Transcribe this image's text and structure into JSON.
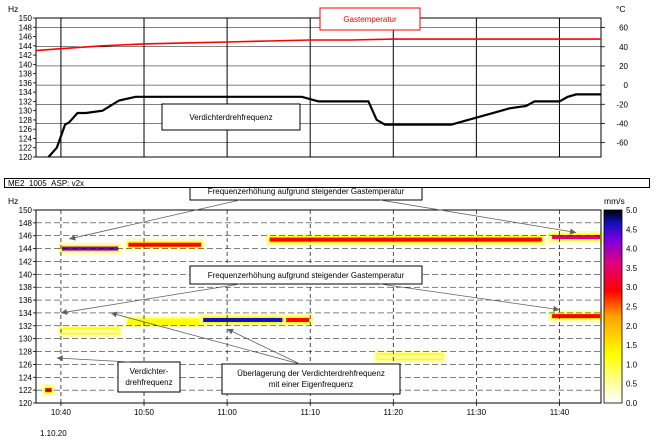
{
  "chart_data": [
    {
      "type": "line",
      "panel": "top",
      "y_unit": "Hz",
      "y2_unit": "°C",
      "ylim": [
        120,
        150
      ],
      "y2lim": [
        -75,
        70
      ],
      "xlim": [
        "10:37",
        "11:45"
      ],
      "grid": true,
      "yticks": [
        120,
        122,
        124,
        126,
        128,
        130,
        132,
        134,
        136,
        138,
        140,
        142,
        144,
        146,
        148,
        150
      ],
      "y2ticks": [
        60,
        40,
        20,
        0,
        -20,
        -40,
        -60
      ],
      "series": [
        {
          "name": "Gastemperatur",
          "axis": "right",
          "color": "#ff0000",
          "x": [
            "10:37",
            "10:40",
            "10:45",
            "10:50",
            "10:55",
            "11:00",
            "11:05",
            "11:10",
            "11:15",
            "11:20",
            "11:25",
            "11:30",
            "11:35",
            "11:40",
            "11:45"
          ],
          "y": [
            36,
            38,
            41,
            43,
            44,
            45,
            46,
            47,
            47,
            48,
            48,
            48,
            48,
            48,
            48
          ]
        },
        {
          "name": "Verdichterdrehfrequenz",
          "axis": "left",
          "color": "#000000",
          "x": [
            "10:38:30",
            "10:39:30",
            "10:40:30",
            "10:41",
            "10:42",
            "10:43",
            "10:45",
            "10:47",
            "10:49",
            "10:55",
            "11:00",
            "11:05",
            "11:09",
            "11:11",
            "11:17",
            "11:18",
            "11:19",
            "11:25",
            "11:27",
            "11:29",
            "11:33",
            "11:34",
            "11:36",
            "11:37",
            "11:40",
            "11:41",
            "11:42",
            "11:45"
          ],
          "y": [
            120,
            122,
            127,
            127.5,
            129.5,
            129.5,
            130,
            132.2,
            133,
            133,
            133,
            133,
            133,
            132,
            132,
            128,
            127,
            127,
            127,
            128,
            130,
            130.5,
            131,
            132,
            132,
            133,
            133.5,
            133.5
          ]
        }
      ]
    },
    {
      "type": "heatmap",
      "panel": "bottom",
      "y_unit": "Hz",
      "colorbar_unit": "mm/s",
      "colorbar_ticks": [
        0.0,
        0.5,
        1.0,
        1.5,
        2.0,
        2.5,
        3.0,
        3.5,
        4.0,
        4.5,
        5.0
      ],
      "ylim": [
        120,
        150
      ],
      "xlim": [
        "10:37",
        "11:45"
      ],
      "grid": true,
      "yticks": [
        120,
        122,
        124,
        126,
        128,
        130,
        132,
        134,
        136,
        138,
        140,
        142,
        144,
        146,
        148,
        150
      ],
      "xticks": [
        "10:40",
        "10:50",
        "11:00",
        "11:10",
        "11:20",
        "11:30",
        "11:40"
      ],
      "date_label": "1.10.20",
      "bands": [
        {
          "x": [
            "10:40",
            "10:47"
          ],
          "y": 144,
          "level": 4.6
        },
        {
          "x": [
            "10:48",
            "10:57"
          ],
          "y": 144.6,
          "level": 3.4
        },
        {
          "x": [
            "11:05",
            "11:38"
          ],
          "y": 145.4,
          "level": 3.0
        },
        {
          "x": [
            "11:39",
            "11:45"
          ],
          "y": 145.8,
          "level": 3.6
        },
        {
          "x": [
            "10:40",
            "10:47"
          ],
          "y": 131.2,
          "level": 0.8
        },
        {
          "x": [
            "10:48",
            "10:57"
          ],
          "y": 132.6,
          "level": 1.2
        },
        {
          "x": [
            "10:57",
            "11:07"
          ],
          "y": 132.9,
          "level": 4.9
        },
        {
          "x": [
            "11:07",
            "11:10"
          ],
          "y": 132.9,
          "level": 3.0
        },
        {
          "x": [
            "11:39",
            "11:45"
          ],
          "y": 133.5,
          "level": 3.4
        },
        {
          "x": [
            "11:18",
            "11:26"
          ],
          "y": 127.2,
          "level": 0.6
        },
        {
          "x": [
            "10:38",
            "10:39"
          ],
          "y": 122,
          "level": 3.5
        }
      ],
      "annotations": [
        "Frequenzerhöhung aufgrund steigender Gastemperatur",
        "Frequenzerhöhung aufgrund steigender Gastemperatur",
        "Verdichter-\ndrehfrequenz",
        "Überlagerung der Verdichterdrehfrequenz\nmit einer Eigenfrequenz"
      ]
    }
  ],
  "panel_title": "ME2_1005_ASP: v2x"
}
